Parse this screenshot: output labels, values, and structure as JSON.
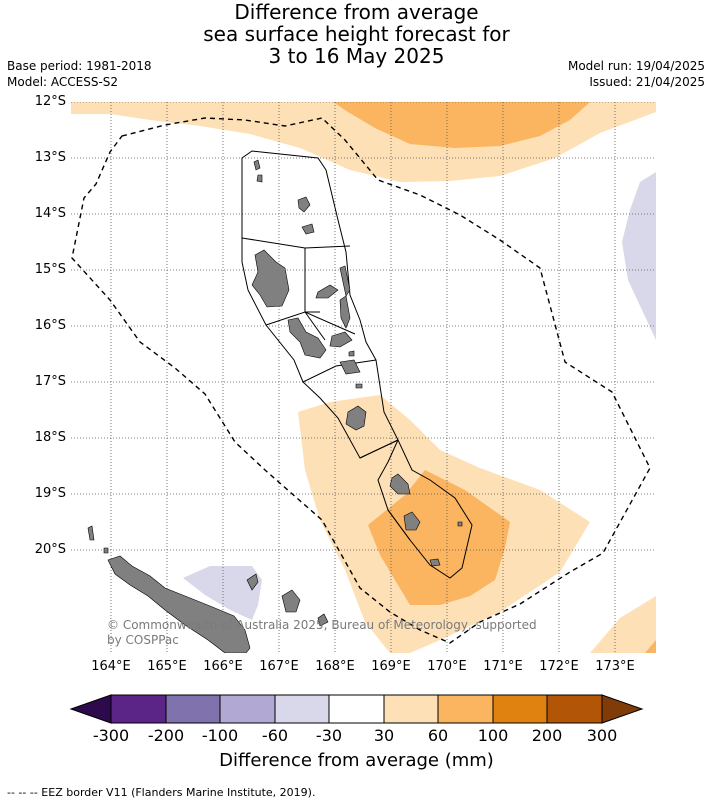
{
  "title": {
    "line1": "Difference from average",
    "line2": "sea surface height forecast for",
    "line3": "3 to 16 May 2025"
  },
  "meta_left": {
    "base_period": "Base period: 1981-2018",
    "model": "Model: ACCESS-S2"
  },
  "meta_right": {
    "model_run": "Model run: 19/04/2025",
    "issued": "Issued: 21/04/2025"
  },
  "map": {
    "lat_labels": [
      "12°S",
      "13°S",
      "14°S",
      "15°S",
      "16°S",
      "17°S",
      "18°S",
      "19°S",
      "20°S"
    ],
    "lon_labels": [
      "164°E",
      "165°E",
      "166°E",
      "167°E",
      "168°E",
      "169°E",
      "170°E",
      "171°E",
      "172°E",
      "173°E"
    ],
    "copyright_line1": "© Commonwealth of Australia 2025, Bureau of Meteorology, supported",
    "copyright_line2": "by COSPPac"
  },
  "colorbar": {
    "ticks": [
      "-300",
      "-200",
      "-100",
      "-60",
      "-30",
      "30",
      "60",
      "100",
      "200",
      "300"
    ],
    "colors": [
      "#2d0a4e",
      "#5b2487",
      "#7f72ad",
      "#b1a9d3",
      "#d8d8ea",
      "#ffffff",
      "#fde0b6",
      "#fbb45f",
      "#e0820f",
      "#b35506",
      "#7f3b08"
    ],
    "label": "Difference from average (mm)"
  },
  "footer": "--  --  -- EEZ border V11 (Flanders Marine Institute, 2019)."
}
